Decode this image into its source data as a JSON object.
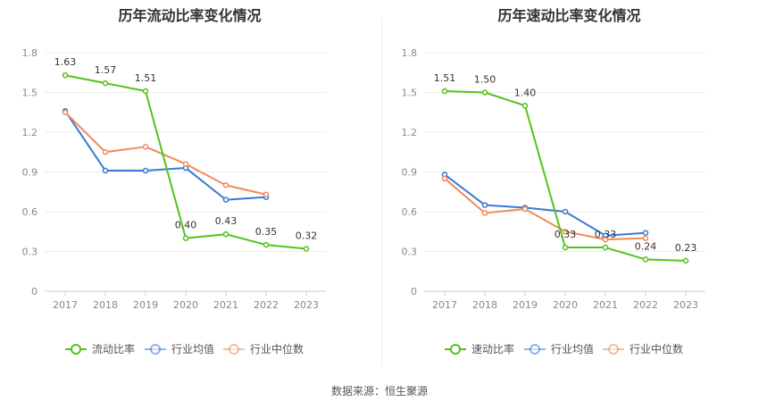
{
  "source_text": "数据来源：恒生聚源",
  "chart_data": [
    {
      "type": "line",
      "title": "历年流动比率变化情况",
      "x": [
        "2017",
        "2018",
        "2019",
        "2020",
        "2021",
        "2022",
        "2023"
      ],
      "ylim": [
        0,
        1.8
      ],
      "yticks": [
        "0",
        "0.3",
        "0.6",
        "0.9",
        "1.2",
        "1.5",
        "1.8"
      ],
      "grid": true,
      "legend_position": "bottom",
      "series": [
        {
          "name": "流动比率",
          "color": "#52c41a",
          "values": [
            1.63,
            1.57,
            1.51,
            0.4,
            0.43,
            0.35,
            0.32
          ],
          "labels": [
            "1.63",
            "1.57",
            "1.51",
            "0.40",
            "0.43",
            "0.35",
            "0.32"
          ]
        },
        {
          "name": "行业均值",
          "color": "#3a78d8",
          "values": [
            1.36,
            0.91,
            0.91,
            0.93,
            0.69,
            0.71,
            null
          ]
        },
        {
          "name": "行业中位数",
          "color": "#f08a5d",
          "values": [
            1.35,
            1.05,
            1.09,
            0.96,
            0.8,
            0.73,
            null
          ]
        }
      ]
    },
    {
      "type": "line",
      "title": "历年速动比率变化情况",
      "x": [
        "2017",
        "2018",
        "2019",
        "2020",
        "2021",
        "2022",
        "2023"
      ],
      "ylim": [
        0,
        1.8
      ],
      "yticks": [
        "0",
        "0.3",
        "0.6",
        "0.9",
        "1.2",
        "1.5",
        "1.8"
      ],
      "grid": true,
      "legend_position": "bottom",
      "series": [
        {
          "name": "速动比率",
          "color": "#52c41a",
          "values": [
            1.51,
            1.5,
            1.4,
            0.33,
            0.33,
            0.24,
            0.23
          ],
          "labels": [
            "1.51",
            "1.50",
            "1.40",
            "0.33",
            "0.33",
            "0.24",
            "0.23"
          ]
        },
        {
          "name": "行业均值",
          "color": "#3a78d8",
          "values": [
            0.88,
            0.65,
            0.63,
            0.6,
            0.42,
            0.44,
            null
          ]
        },
        {
          "name": "行业中位数",
          "color": "#f08a5d",
          "values": [
            0.85,
            0.59,
            0.62,
            0.45,
            0.39,
            0.4,
            null
          ]
        }
      ]
    }
  ]
}
